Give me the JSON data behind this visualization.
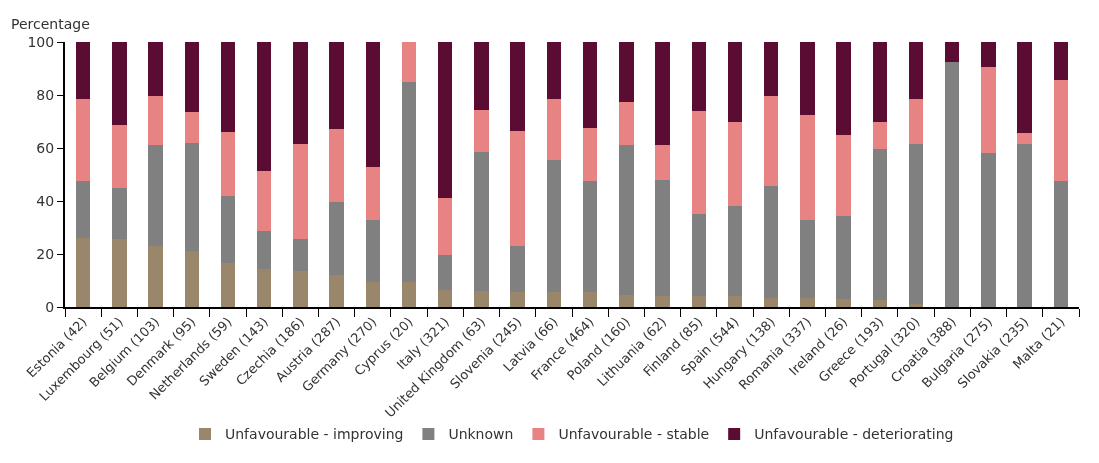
{
  "chart_data": {
    "type": "bar",
    "stacked": true,
    "ylabel": "Percentage",
    "categories": [
      "Estonia (42)",
      "Luxembourg (51)",
      "Belgium (103)",
      "Denmark (95)",
      "Netherlands (59)",
      "Sweden (143)",
      "Czechia (186)",
      "Austria (287)",
      "Germany (270)",
      "Cyprus (20)",
      "Italy (321)",
      "United Kingdom (63)",
      "Slovenia (245)",
      "Latvia (66)",
      "France (464)",
      "Poland (160)",
      "Lithuania (62)",
      "Finland (85)",
      "Spain (544)",
      "Hungary (138)",
      "Romania (337)",
      "Ireland (26)",
      "Greece (193)",
      "Portugal (320)",
      "Croatia (388)",
      "Bulgaria (275)",
      "Slovakia (235)",
      "Malta (21)"
    ],
    "series": [
      {
        "name": "Unfavourable - improving",
        "color": "#9a866a",
        "values": [
          26,
          25.5,
          23,
          21,
          16.5,
          14.5,
          13.5,
          12,
          9.5,
          9.5,
          6.5,
          6,
          5.5,
          5.5,
          5.5,
          4.5,
          4,
          4,
          4,
          3.5,
          3.5,
          3,
          2.5,
          1,
          0,
          0,
          0,
          0
        ]
      },
      {
        "name": "Unknown",
        "color": "#808080",
        "values": [
          21.5,
          19.5,
          38,
          41,
          25.5,
          14,
          12,
          27.5,
          23.5,
          75.5,
          13,
          52.5,
          17.5,
          50,
          42,
          56.5,
          44,
          31,
          34,
          42,
          29.5,
          31.5,
          57,
          60.5,
          92.5,
          58,
          61.5,
          47.5
        ]
      },
      {
        "name": "Unfavourable - stable",
        "color": "#e88383",
        "values": [
          31,
          23.5,
          18.5,
          11.5,
          24,
          23,
          36,
          27.5,
          20,
          15,
          21.5,
          16,
          43.5,
          23,
          20,
          16.5,
          13,
          39,
          32,
          34,
          39.5,
          30.5,
          10.5,
          17,
          0,
          32.5,
          4,
          38
        ]
      },
      {
        "name": "Unfavourable - deteriorating",
        "color": "#5a0c33",
        "values": [
          21.5,
          31.5,
          20.5,
          26.5,
          34,
          48.5,
          38.5,
          33,
          47,
          0,
          59,
          25.5,
          33.5,
          21.5,
          32.5,
          22.5,
          39,
          26,
          30,
          20.5,
          27.5,
          35,
          30,
          21.5,
          7.5,
          9.5,
          34.5,
          14.5
        ]
      }
    ],
    "ylim": [
      0,
      100
    ],
    "yticks": [
      0,
      20,
      40,
      60,
      80,
      100
    ],
    "grid": false,
    "legend": "bottom"
  }
}
